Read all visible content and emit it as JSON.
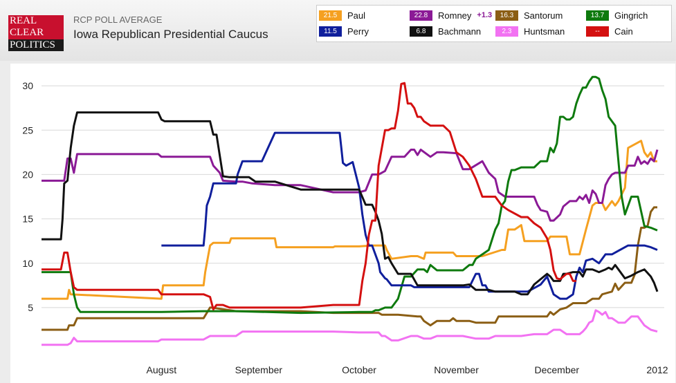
{
  "header": {
    "logo": [
      "REAL",
      "CLEAR",
      "POLITICS"
    ],
    "kicker": "RCP POLL AVERAGE",
    "title": "Iowa Republican Presidential Caucus"
  },
  "legend": [
    {
      "name": "Paul",
      "value": "21.5",
      "color": "#f5a020",
      "change": ""
    },
    {
      "name": "Romney",
      "value": "22.8",
      "color": "#8b1a96",
      "change": "+1.3"
    },
    {
      "name": "Santorum",
      "value": "16.3",
      "color": "#8b5e14",
      "change": ""
    },
    {
      "name": "Gingrich",
      "value": "13.7",
      "color": "#0e7a0e",
      "change": ""
    },
    {
      "name": "Perry",
      "value": "11.5",
      "color": "#101f9c",
      "change": ""
    },
    {
      "name": "Bachmann",
      "value": "6.8",
      "color": "#111111",
      "change": ""
    },
    {
      "name": "Huntsman",
      "value": "2.3",
      "color": "#f272f2",
      "change": ""
    },
    {
      "name": "Cain",
      "value": "--",
      "color": "#d41010",
      "change": ""
    }
  ],
  "chart_data": {
    "type": "line",
    "title": "Iowa Republican Presidential Caucus",
    "x_ticks": [
      {
        "label": "August",
        "x": 37
      },
      {
        "label": "September",
        "x": 67
      },
      {
        "label": "October",
        "x": 98
      },
      {
        "label": "November",
        "x": 128
      },
      {
        "label": "December",
        "x": 159
      },
      {
        "label": "2012",
        "x": 190
      }
    ],
    "y_ticks": [
      5,
      10,
      15,
      20,
      25,
      30
    ],
    "xlim": [
      0,
      190
    ],
    "ylim": [
      -3.5,
      32.5
    ],
    "grid": true,
    "series": [
      {
        "name": "Paul",
        "color": "#f5a020",
        "x": [
          0,
          8,
          8.5,
          9,
          37,
          37.5,
          50,
          50.5,
          52,
          53,
          55,
          58,
          58.5,
          65,
          66,
          67,
          72,
          72.5,
          80,
          80.5,
          90,
          90.5,
          98,
          102,
          106,
          106.5,
          108,
          114,
          116,
          118,
          118.5,
          121,
          123,
          127,
          128,
          133,
          136,
          142,
          143,
          144,
          146,
          148,
          149,
          151,
          152,
          156,
          157,
          159,
          160,
          162,
          163,
          166,
          168,
          170,
          171,
          173,
          174,
          176,
          177,
          178,
          180,
          181,
          185,
          186,
          187,
          188,
          189,
          190
        ],
        "y": [
          6,
          6,
          7,
          6.5,
          6,
          7.5,
          7.5,
          9,
          12,
          12.3,
          12.3,
          12.3,
          12.8,
          12.8,
          12.8,
          12.8,
          12.8,
          11.8,
          11.8,
          11.8,
          11.8,
          11.9,
          11.9,
          12,
          12,
          11.5,
          10.5,
          10.8,
          10.8,
          10.5,
          11.2,
          11.2,
          11.2,
          11.2,
          10.8,
          10.8,
          10.8,
          11.5,
          11.5,
          13.8,
          13.8,
          14.3,
          12.5,
          12.5,
          12.5,
          12.5,
          13,
          13,
          13,
          13,
          11,
          11,
          13.8,
          16.5,
          16.8,
          16.8,
          16,
          17,
          16.5,
          17,
          18.5,
          23,
          23.8,
          22.5,
          22,
          22.5,
          21.5,
          21.5
        ]
      },
      {
        "name": "Romney",
        "color": "#8b1a96",
        "x": [
          0,
          6,
          7,
          8,
          9,
          10,
          11,
          12,
          36,
          37,
          50,
          52,
          53,
          55,
          56,
          60,
          62,
          65,
          72,
          74,
          80,
          90,
          96,
          98,
          100,
          102,
          104,
          106,
          108,
          110,
          112,
          114,
          115,
          116,
          117,
          120,
          122,
          124,
          128,
          130,
          132,
          136,
          138,
          140,
          141,
          143,
          145,
          146,
          148,
          150,
          152,
          153,
          154,
          156,
          157,
          158,
          160,
          161,
          163,
          165,
          166,
          167,
          168,
          169,
          170,
          171,
          172,
          173,
          174,
          175,
          176,
          177,
          178,
          180,
          181,
          183,
          184,
          185,
          186,
          187,
          188,
          189,
          190
        ],
        "y": [
          19.3,
          19.3,
          19.3,
          21.8,
          21.8,
          20.2,
          22.3,
          22.3,
          22.3,
          22,
          22,
          22,
          21,
          20.2,
          19.3,
          19.2,
          19.2,
          19,
          18.8,
          18.8,
          18.8,
          18,
          18,
          18,
          18.2,
          20,
          20,
          20.4,
          22,
          22,
          22,
          22.8,
          22.8,
          22.2,
          22.8,
          22,
          22.5,
          22.5,
          22.4,
          20.6,
          20.6,
          21.5,
          20.2,
          19.5,
          18,
          17.5,
          17.5,
          17.5,
          17.5,
          17.5,
          17.5,
          16.6,
          16,
          15.8,
          14.8,
          14.8,
          15.5,
          16.4,
          17,
          17,
          17.5,
          17.2,
          17.7,
          16.8,
          18.2,
          17.8,
          16.8,
          16.8,
          18.8,
          19.5,
          20,
          20.2,
          20.2,
          20.2,
          21,
          21,
          22,
          21.2,
          21.5,
          21.2,
          21.8,
          21.5,
          22.8
        ]
      },
      {
        "name": "Santorum",
        "color": "#8b5e14",
        "x": [
          0,
          8,
          8.5,
          9,
          10,
          11,
          12,
          37,
          50,
          52,
          52.5,
          60,
          72,
          80,
          90,
          98,
          104,
          105,
          110,
          116,
          117,
          118,
          120,
          122,
          126,
          127,
          128,
          130,
          132,
          134,
          136,
          140,
          141,
          148,
          150,
          156,
          157,
          158,
          160,
          162,
          164,
          165,
          166,
          168,
          170,
          171,
          172,
          173,
          175,
          176,
          177,
          178,
          180,
          182,
          183,
          184,
          185,
          186,
          187,
          188,
          189,
          190
        ],
        "y": [
          2.5,
          2.5,
          3,
          3,
          3,
          3.8,
          3.8,
          3.8,
          3.8,
          5,
          5,
          4.6,
          4.6,
          4.6,
          4.4,
          4.4,
          4.4,
          4.2,
          4.2,
          4,
          4,
          3.5,
          3,
          3.5,
          3.5,
          3.8,
          3.5,
          3.5,
          3.5,
          3.3,
          3.3,
          3.3,
          4,
          4,
          4,
          4,
          4.5,
          4.2,
          4.8,
          5,
          5.5,
          5.5,
          5.5,
          5.5,
          6,
          6,
          6,
          6.5,
          6.7,
          6.8,
          7.7,
          7,
          7.8,
          7.8,
          8.7,
          12,
          14,
          14,
          14.2,
          15.8,
          16.3,
          16.3
        ]
      },
      {
        "name": "Gingrich",
        "color": "#0e7a0e",
        "x": [
          0,
          8,
          8.5,
          9,
          10,
          11,
          12,
          37,
          50,
          60,
          80,
          98,
          102,
          103,
          104,
          106,
          108,
          110,
          112,
          114,
          116,
          118,
          119,
          120,
          122,
          124,
          130,
          131,
          132,
          133,
          134,
          136,
          138,
          140,
          141,
          142,
          143,
          144,
          145,
          146,
          148,
          150,
          152,
          154,
          156,
          157,
          158,
          159,
          160,
          161,
          162,
          163,
          164,
          165,
          166,
          167,
          168,
          169,
          170,
          171,
          172,
          173,
          174,
          175,
          176,
          177,
          178,
          179,
          180,
          182,
          183,
          184,
          186,
          188,
          190
        ],
        "y": [
          9,
          9,
          9,
          9,
          6.5,
          5,
          4.5,
          4.5,
          4.6,
          4.6,
          4.4,
          4.5,
          4.5,
          4.7,
          4.7,
          5,
          5,
          6,
          8.5,
          8.5,
          9.3,
          9.3,
          9,
          9.8,
          9.2,
          9.2,
          9.2,
          9.5,
          9.8,
          9.8,
          10.5,
          11,
          11.5,
          13.8,
          14.5,
          16.5,
          17,
          19.2,
          20.5,
          20.5,
          20.8,
          20.8,
          20.8,
          21.5,
          21.5,
          23,
          22.5,
          23.5,
          26.5,
          26.5,
          26.2,
          26.2,
          26.5,
          28,
          29,
          29.8,
          29.8,
          30.5,
          31,
          31,
          30.8,
          29.5,
          28.5,
          26.5,
          26,
          25.5,
          21.5,
          17.5,
          15.5,
          17.5,
          17.5,
          17.5,
          14.2,
          14,
          13.7
        ]
      },
      {
        "name": "Perry",
        "color": "#101f9c",
        "x": [
          37,
          50,
          50.5,
          51,
          52,
          53,
          60,
          60.5,
          62,
          64,
          66,
          68,
          72,
          72.5,
          74,
          80,
          90,
          92,
          92.5,
          93,
          94,
          96,
          98,
          99,
          100,
          101,
          102,
          104,
          104.5,
          106,
          106.5,
          108,
          110,
          112,
          114,
          115,
          116,
          118,
          120,
          124,
          126,
          128,
          130,
          132,
          134,
          135,
          136,
          137,
          138,
          140,
          142,
          144,
          146,
          150,
          152,
          154,
          156,
          158,
          160,
          162,
          164,
          165,
          166,
          167,
          168,
          170,
          172,
          174,
          176,
          180,
          181,
          186,
          188,
          190
        ],
        "y": [
          12,
          12,
          14,
          16.5,
          17.5,
          19,
          19,
          20,
          21.5,
          21.5,
          21.5,
          21.5,
          24.7,
          24.7,
          24.7,
          24.7,
          24.7,
          24.7,
          23,
          21.3,
          21,
          21.4,
          18.5,
          15.5,
          13.2,
          12,
          12,
          10,
          9,
          8.3,
          8.2,
          7.5,
          7.5,
          7.5,
          7.5,
          7.3,
          7.3,
          7.3,
          7.3,
          7.3,
          7.3,
          7.3,
          7.3,
          7.3,
          8.8,
          8.8,
          7.5,
          7.5,
          6.8,
          6.8,
          6.8,
          6.8,
          6.8,
          6.8,
          7.2,
          7.6,
          8.5,
          6.5,
          6,
          6,
          6.5,
          8.5,
          9.5,
          9,
          10.3,
          10.5,
          10,
          11,
          11,
          11.8,
          12,
          12,
          11.8,
          11.5
        ]
      },
      {
        "name": "Bachmann",
        "color": "#111111",
        "x": [
          0,
          6,
          6.5,
          7,
          8,
          9,
          10,
          11,
          12,
          36,
          37,
          38,
          50,
          52,
          53,
          54,
          56,
          58,
          60,
          62,
          64,
          66,
          72,
          80,
          90,
          96,
          98,
          100,
          102,
          103,
          104,
          105,
          106,
          107,
          108,
          110,
          114,
          116,
          118,
          120,
          124,
          128,
          130,
          132,
          134,
          136,
          138,
          140,
          144,
          146,
          148,
          150,
          152,
          156,
          157,
          158,
          160,
          161,
          162,
          164,
          166,
          167,
          168,
          170,
          172,
          174,
          175,
          176,
          177,
          178,
          180,
          182,
          184,
          186,
          188,
          189,
          190
        ],
        "y": [
          12.7,
          12.7,
          15,
          19,
          19.3,
          23,
          25.5,
          27,
          27,
          27,
          26.2,
          26,
          26,
          26,
          24.5,
          24.5,
          19.8,
          19.7,
          19.7,
          19.7,
          19.7,
          19.2,
          19.2,
          18.3,
          18.3,
          18.3,
          18.3,
          16.6,
          16.6,
          15.8,
          14.8,
          13.3,
          10.5,
          10.7,
          10,
          8.8,
          8.8,
          7.5,
          7.5,
          7.5,
          7.5,
          7.5,
          7.5,
          7.6,
          7,
          7,
          7,
          6.8,
          6.8,
          6.8,
          6.5,
          6.5,
          7.6,
          8.8,
          8.5,
          8,
          8,
          8.8,
          8.8,
          9,
          9,
          8.5,
          9.3,
          9.3,
          9,
          9.3,
          9.5,
          9.3,
          9.8,
          9.3,
          8.3,
          8.6,
          9,
          9.3,
          8.5,
          7.8,
          6.8
        ]
      },
      {
        "name": "Huntsman",
        "color": "#f272f2",
        "x": [
          0,
          8,
          9,
          10,
          11,
          12,
          36,
          37,
          50,
          52,
          60,
          62,
          72,
          80,
          90,
          98,
          104,
          105,
          106,
          108,
          110,
          114,
          116,
          118,
          120,
          122,
          130,
          134,
          138,
          140,
          144,
          148,
          152,
          156,
          158,
          160,
          162,
          164,
          166,
          167,
          168,
          169,
          170,
          171,
          172,
          173,
          174,
          175,
          176,
          178,
          180,
          182,
          184,
          186,
          188,
          190
        ],
        "y": [
          0.8,
          0.8,
          1,
          1.6,
          1.2,
          1.2,
          1.2,
          1.4,
          1.4,
          1.8,
          1.8,
          2.3,
          2.3,
          2.3,
          2.3,
          2.2,
          2.2,
          1.8,
          1.8,
          1.3,
          1.3,
          1.8,
          1.8,
          1.5,
          1.5,
          1.8,
          1.8,
          1.5,
          1.5,
          1.8,
          1.8,
          1.8,
          2,
          2,
          2.5,
          2.5,
          2,
          2,
          2,
          2.3,
          2.7,
          3.3,
          3.5,
          4.7,
          4.5,
          4.2,
          4.5,
          3.8,
          3.8,
          3.3,
          3.3,
          4,
          4,
          3,
          2.5,
          2.3
        ]
      },
      {
        "name": "Cain",
        "color": "#d41010",
        "x": [
          0,
          6,
          7,
          8,
          9,
          10,
          11,
          12,
          36,
          37,
          50,
          52,
          53,
          54,
          56,
          58,
          60,
          62,
          64,
          66,
          72,
          80,
          90,
          96,
          98,
          99,
          100,
          101,
          102,
          103,
          104,
          106,
          107,
          108,
          109,
          110,
          111,
          112,
          113,
          114,
          115,
          116,
          117,
          118,
          120,
          122,
          124,
          126,
          128,
          130,
          132,
          134,
          136,
          138,
          140,
          142,
          144,
          148,
          150,
          152,
          154,
          156,
          157,
          158,
          159,
          160,
          162,
          163,
          164,
          165
        ],
        "y": [
          9.3,
          9.3,
          11.2,
          11.2,
          9,
          7.3,
          7,
          7,
          7,
          6.5,
          6.5,
          6.2,
          4.8,
          5.3,
          5.3,
          5,
          5,
          5,
          5,
          5,
          5,
          5,
          5.3,
          5.3,
          5.3,
          8,
          10,
          13.2,
          14.8,
          14.8,
          21,
          25,
          25,
          25.2,
          25.2,
          27.2,
          30.2,
          30.3,
          28,
          28,
          27.5,
          26.5,
          26.5,
          26,
          25.5,
          25.5,
          25.5,
          24.8,
          22.5,
          22,
          21,
          19.5,
          17.5,
          17.5,
          17.5,
          16.5,
          16,
          15.2,
          15.2,
          14.5,
          14,
          12.8,
          11.5,
          9.2,
          8.3,
          8.2,
          8.8,
          8.8,
          8,
          8
        ]
      }
    ]
  }
}
